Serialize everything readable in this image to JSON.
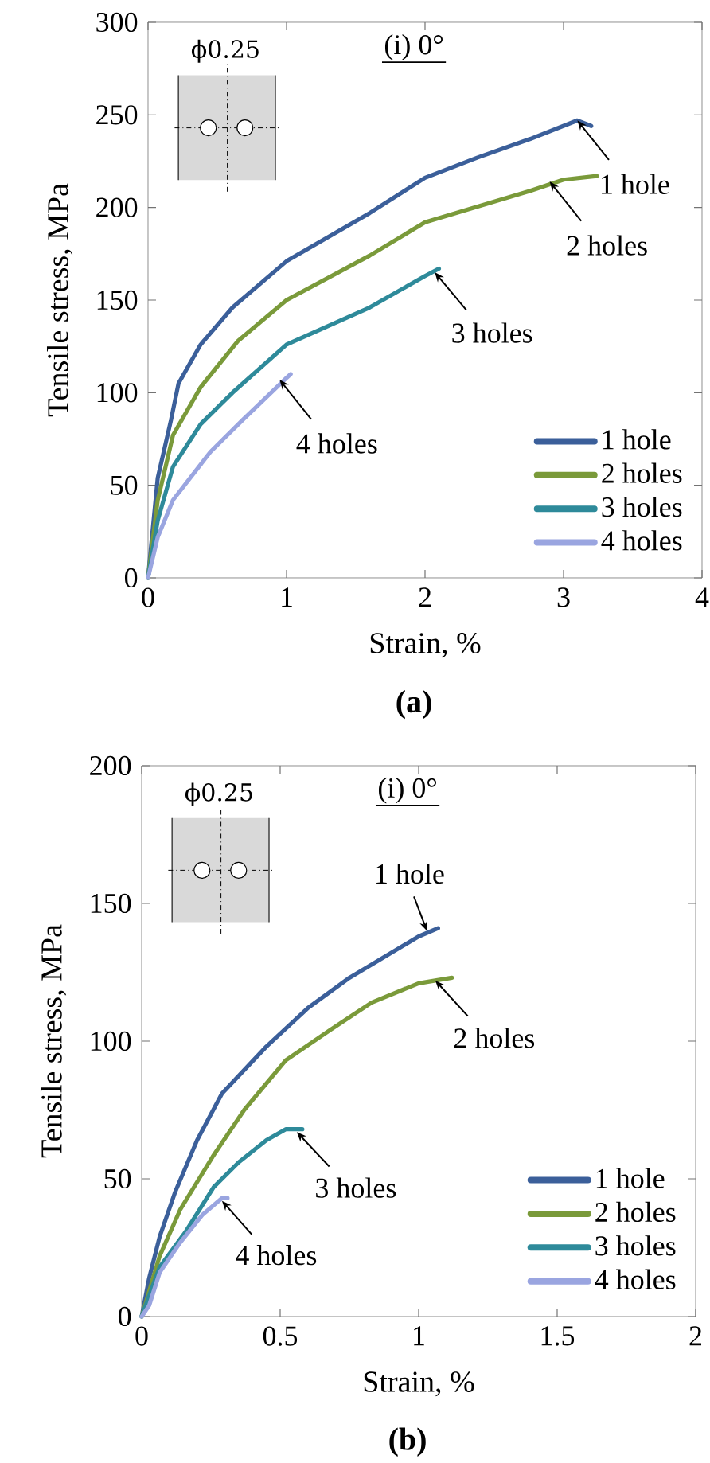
{
  "chart_data": [
    {
      "type": "line",
      "xlabel": "Strain, %",
      "ylabel": "Tensile stress, MPa",
      "xlim": [
        0,
        4
      ],
      "ylim": [
        0,
        300
      ],
      "xticks": [
        0,
        1,
        2,
        3,
        4
      ],
      "yticks": [
        0,
        50,
        100,
        150,
        200,
        250,
        300
      ],
      "legend": "bottom right",
      "marker": "none",
      "line_style": "solid",
      "series": [
        {
          "name": "1 hole",
          "color": "#3b5f9a",
          "x": [
            0,
            0.07,
            0.165,
            0.22,
            0.38,
            0.61,
            1.0,
            1.6,
            2.0,
            2.38,
            2.76,
            3.1,
            3.2
          ],
          "values": [
            0,
            54,
            85,
            105,
            126,
            146,
            171,
            197,
            216,
            227,
            237,
            247,
            244
          ]
        },
        {
          "name": "2 holes",
          "color": "#7a9a3a",
          "x": [
            0,
            0.07,
            0.18,
            0.38,
            0.65,
            1.0,
            1.6,
            2.0,
            2.76,
            3.0,
            3.24
          ],
          "values": [
            0,
            42,
            77,
            103,
            128,
            150,
            174,
            192,
            209,
            215,
            217
          ]
        },
        {
          "name": "3 holes",
          "color": "#2e8a9a",
          "x": [
            0,
            0.07,
            0.18,
            0.38,
            0.61,
            1.0,
            1.6,
            2.0,
            2.1
          ],
          "values": [
            0,
            31,
            60,
            83,
            100,
            126,
            146,
            163,
            167
          ]
        },
        {
          "name": "4 holes",
          "color": "#9aa5e0",
          "x": [
            0,
            0.07,
            0.18,
            0.45,
            0.68,
            1.0,
            1.03
          ],
          "values": [
            0,
            22,
            42,
            68,
            85,
            108,
            110
          ]
        }
      ],
      "annotations": [
        "(i) 0°",
        "ϕ0.25",
        {
          "text": "1 hole",
          "x": 3.1,
          "y": 247
        },
        {
          "text": "2 holes",
          "x": 2.9,
          "y": 214
        },
        {
          "text": "3 holes",
          "x": 2.07,
          "y": 165
        },
        {
          "text": "4 holes",
          "x": 0.95,
          "y": 107
        },
        "(a)"
      ]
    },
    {
      "type": "line",
      "xlabel": "Strain, %",
      "ylabel": "Tensile stress, MPa",
      "xlim": [
        0,
        2
      ],
      "ylim": [
        0,
        200
      ],
      "xticks": [
        0,
        0.5,
        1,
        1.5,
        2
      ],
      "yticks": [
        0,
        50,
        100,
        150,
        200
      ],
      "legend": "bottom right",
      "marker": "none",
      "line_style": "solid",
      "series": [
        {
          "name": "1 hole",
          "color": "#3b5f9a",
          "x": [
            0,
            0.027,
            0.065,
            0.12,
            0.2,
            0.29,
            0.45,
            0.6,
            0.75,
            1.0,
            1.07
          ],
          "values": [
            0,
            14,
            29,
            45,
            64,
            81,
            98,
            112,
            123,
            138,
            141
          ]
        },
        {
          "name": "2 holes",
          "color": "#7a9a3a",
          "x": [
            0,
            0.065,
            0.14,
            0.256,
            0.37,
            0.52,
            0.68,
            0.83,
            1.0,
            1.12
          ],
          "values": [
            0,
            22,
            39,
            58,
            75,
            93,
            104,
            114,
            121,
            123
          ]
        },
        {
          "name": "3 holes",
          "color": "#2e8a9a",
          "x": [
            0,
            0.065,
            0.16,
            0.26,
            0.35,
            0.45,
            0.52,
            0.58
          ],
          "values": [
            0,
            18,
            31,
            47,
            56,
            64,
            68,
            68
          ]
        },
        {
          "name": "4 holes",
          "color": "#9aa5e0",
          "x": [
            0,
            0.027,
            0.065,
            0.14,
            0.22,
            0.29,
            0.31
          ],
          "values": [
            0,
            4,
            16,
            27,
            37,
            43,
            43
          ]
        }
      ],
      "annotations": [
        "(i) 0°",
        "ϕ0.25",
        {
          "text": "1 hole",
          "x": 1.03,
          "y": 140
        },
        {
          "text": "2 holes",
          "x": 1.06,
          "y": 122
        },
        {
          "text": "3 holes",
          "x": 0.56,
          "y": 67
        },
        {
          "text": "4 holes",
          "x": 0.29,
          "y": 42
        },
        "(b)"
      ]
    }
  ]
}
